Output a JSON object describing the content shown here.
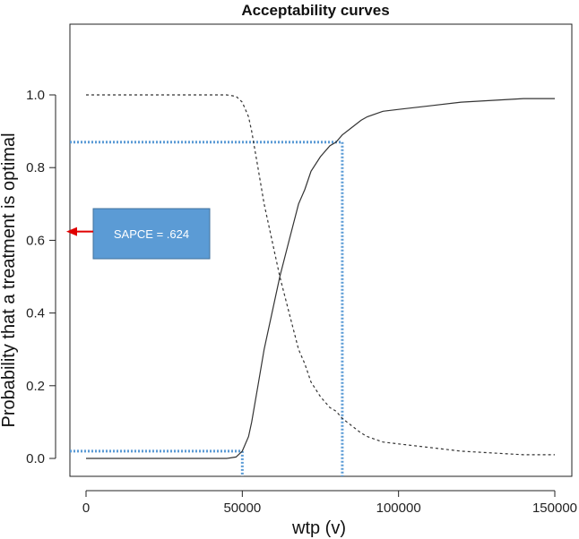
{
  "chart_data": {
    "type": "line",
    "title": "Acceptability curves",
    "xlabel": "wtp (v)",
    "ylabel": "Probability that a treatment is optimal",
    "xlim": [
      -5000,
      155000
    ],
    "ylim": [
      -0.05,
      1.2
    ],
    "x_ticks": [
      0,
      50000,
      100000,
      150000
    ],
    "x_tick_labels": [
      "0",
      "50000",
      "100000",
      "150000"
    ],
    "y_ticks": [
      0.0,
      0.2,
      0.4,
      0.6,
      0.8,
      1.0
    ],
    "y_tick_labels": [
      "0.0",
      "0.2",
      "0.4",
      "0.6",
      "0.8",
      "1.0"
    ],
    "grid": false,
    "series": [
      {
        "style": "solid",
        "color": "#333333",
        "x": [
          0,
          45000,
          48000,
          50000,
          52000,
          53000,
          55000,
          57000,
          60000,
          62000,
          65000,
          68000,
          70000,
          72000,
          75000,
          78000,
          80000,
          82000,
          85000,
          88000,
          90000,
          95000,
          100000,
          110000,
          120000,
          130000,
          140000,
          150000
        ],
        "y": [
          0.0,
          0.0,
          0.004,
          0.02,
          0.06,
          0.1,
          0.2,
          0.3,
          0.42,
          0.5,
          0.6,
          0.7,
          0.74,
          0.79,
          0.83,
          0.86,
          0.87,
          0.89,
          0.91,
          0.93,
          0.94,
          0.955,
          0.96,
          0.97,
          0.98,
          0.985,
          0.99,
          0.99
        ]
      },
      {
        "style": "dashed",
        "color": "#333333",
        "x": [
          0,
          45000,
          48000,
          50000,
          52000,
          53000,
          55000,
          57000,
          60000,
          62000,
          65000,
          68000,
          70000,
          72000,
          75000,
          78000,
          80000,
          82000,
          85000,
          88000,
          90000,
          95000,
          100000,
          110000,
          120000,
          130000,
          140000,
          150000
        ],
        "y": [
          1.0,
          1.0,
          0.996,
          0.98,
          0.94,
          0.9,
          0.8,
          0.7,
          0.58,
          0.5,
          0.4,
          0.3,
          0.26,
          0.21,
          0.17,
          0.14,
          0.13,
          0.11,
          0.09,
          0.07,
          0.06,
          0.045,
          0.04,
          0.03,
          0.02,
          0.015,
          0.01,
          0.01
        ]
      }
    ],
    "reference_lines": {
      "color": "#5b9bd5",
      "style": "dotted",
      "lines": [
        {
          "x": 50000,
          "y": 0.02
        },
        {
          "x": 82000,
          "y": 0.87
        }
      ]
    },
    "annotation": {
      "label": "SAPCE = .624",
      "points_to_y": 0.624,
      "box_color": "#5b9bd5",
      "arrow_color": "#e00000"
    }
  }
}
